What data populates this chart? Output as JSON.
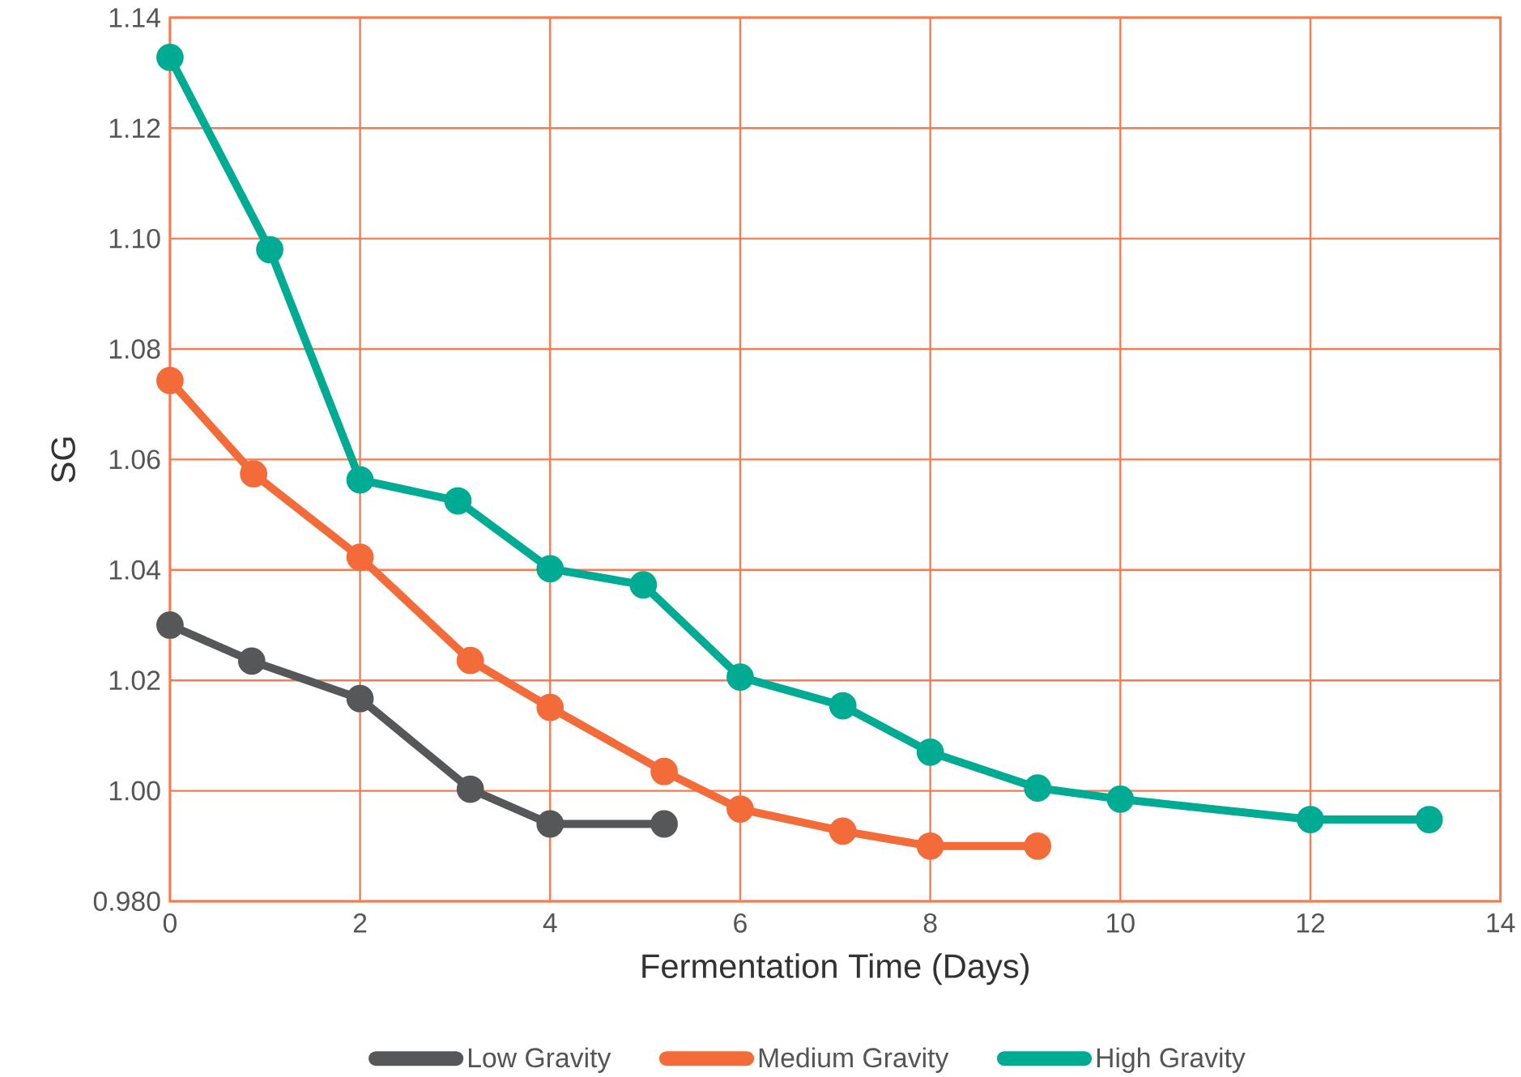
{
  "chart_data": {
    "type": "line",
    "xlabel": "Fermentation Time (Days)",
    "ylabel": "SG",
    "xlim": [
      0,
      14
    ],
    "ylim": [
      0.98,
      1.14
    ],
    "xticks": [
      0,
      2,
      4,
      6,
      8,
      10,
      12,
      14
    ],
    "yticks": [
      {
        "value": 0.98,
        "label": "0.980"
      },
      {
        "value": 1.0,
        "label": "1.00"
      },
      {
        "value": 1.02,
        "label": "1.02"
      },
      {
        "value": 1.04,
        "label": "1.04"
      },
      {
        "value": 1.06,
        "label": "1.06"
      },
      {
        "value": 1.08,
        "label": "1.08"
      },
      {
        "value": 1.1,
        "label": "1.10"
      },
      {
        "value": 1.12,
        "label": "1.12"
      },
      {
        "value": 1.14,
        "label": "1.14"
      }
    ],
    "grid": true,
    "legend": "bottom",
    "marker": "circle",
    "line_style": "solid",
    "series": [
      {
        "name": "Low Gravity",
        "color": "#555759",
        "x": [
          0,
          0.86,
          2.0,
          3.16,
          4.0,
          5.2
        ],
        "values": [
          1.03,
          1.0235,
          1.0167,
          1.0003,
          0.994,
          0.994
        ]
      },
      {
        "name": "Medium Gravity",
        "color": "#f26b38",
        "x": [
          0,
          0.88,
          2.0,
          3.16,
          4.0,
          5.2,
          6.0,
          7.08,
          8.0,
          9.13
        ],
        "values": [
          1.0743,
          1.0574,
          1.0423,
          1.0236,
          1.0151,
          1.0035,
          0.9967,
          0.9927,
          0.99,
          0.99
        ]
      },
      {
        "name": "High Gravity",
        "color": "#00ab94",
        "x": [
          0,
          1.05,
          2.0,
          3.03,
          4.0,
          4.98,
          6.0,
          7.08,
          8.0,
          9.13,
          10.0,
          12.0,
          13.25
        ],
        "values": [
          1.1328,
          1.098,
          1.0563,
          1.0525,
          1.0402,
          1.0373,
          1.0206,
          1.0154,
          1.007,
          1.0005,
          0.9985,
          0.9948,
          0.9948
        ]
      }
    ]
  }
}
